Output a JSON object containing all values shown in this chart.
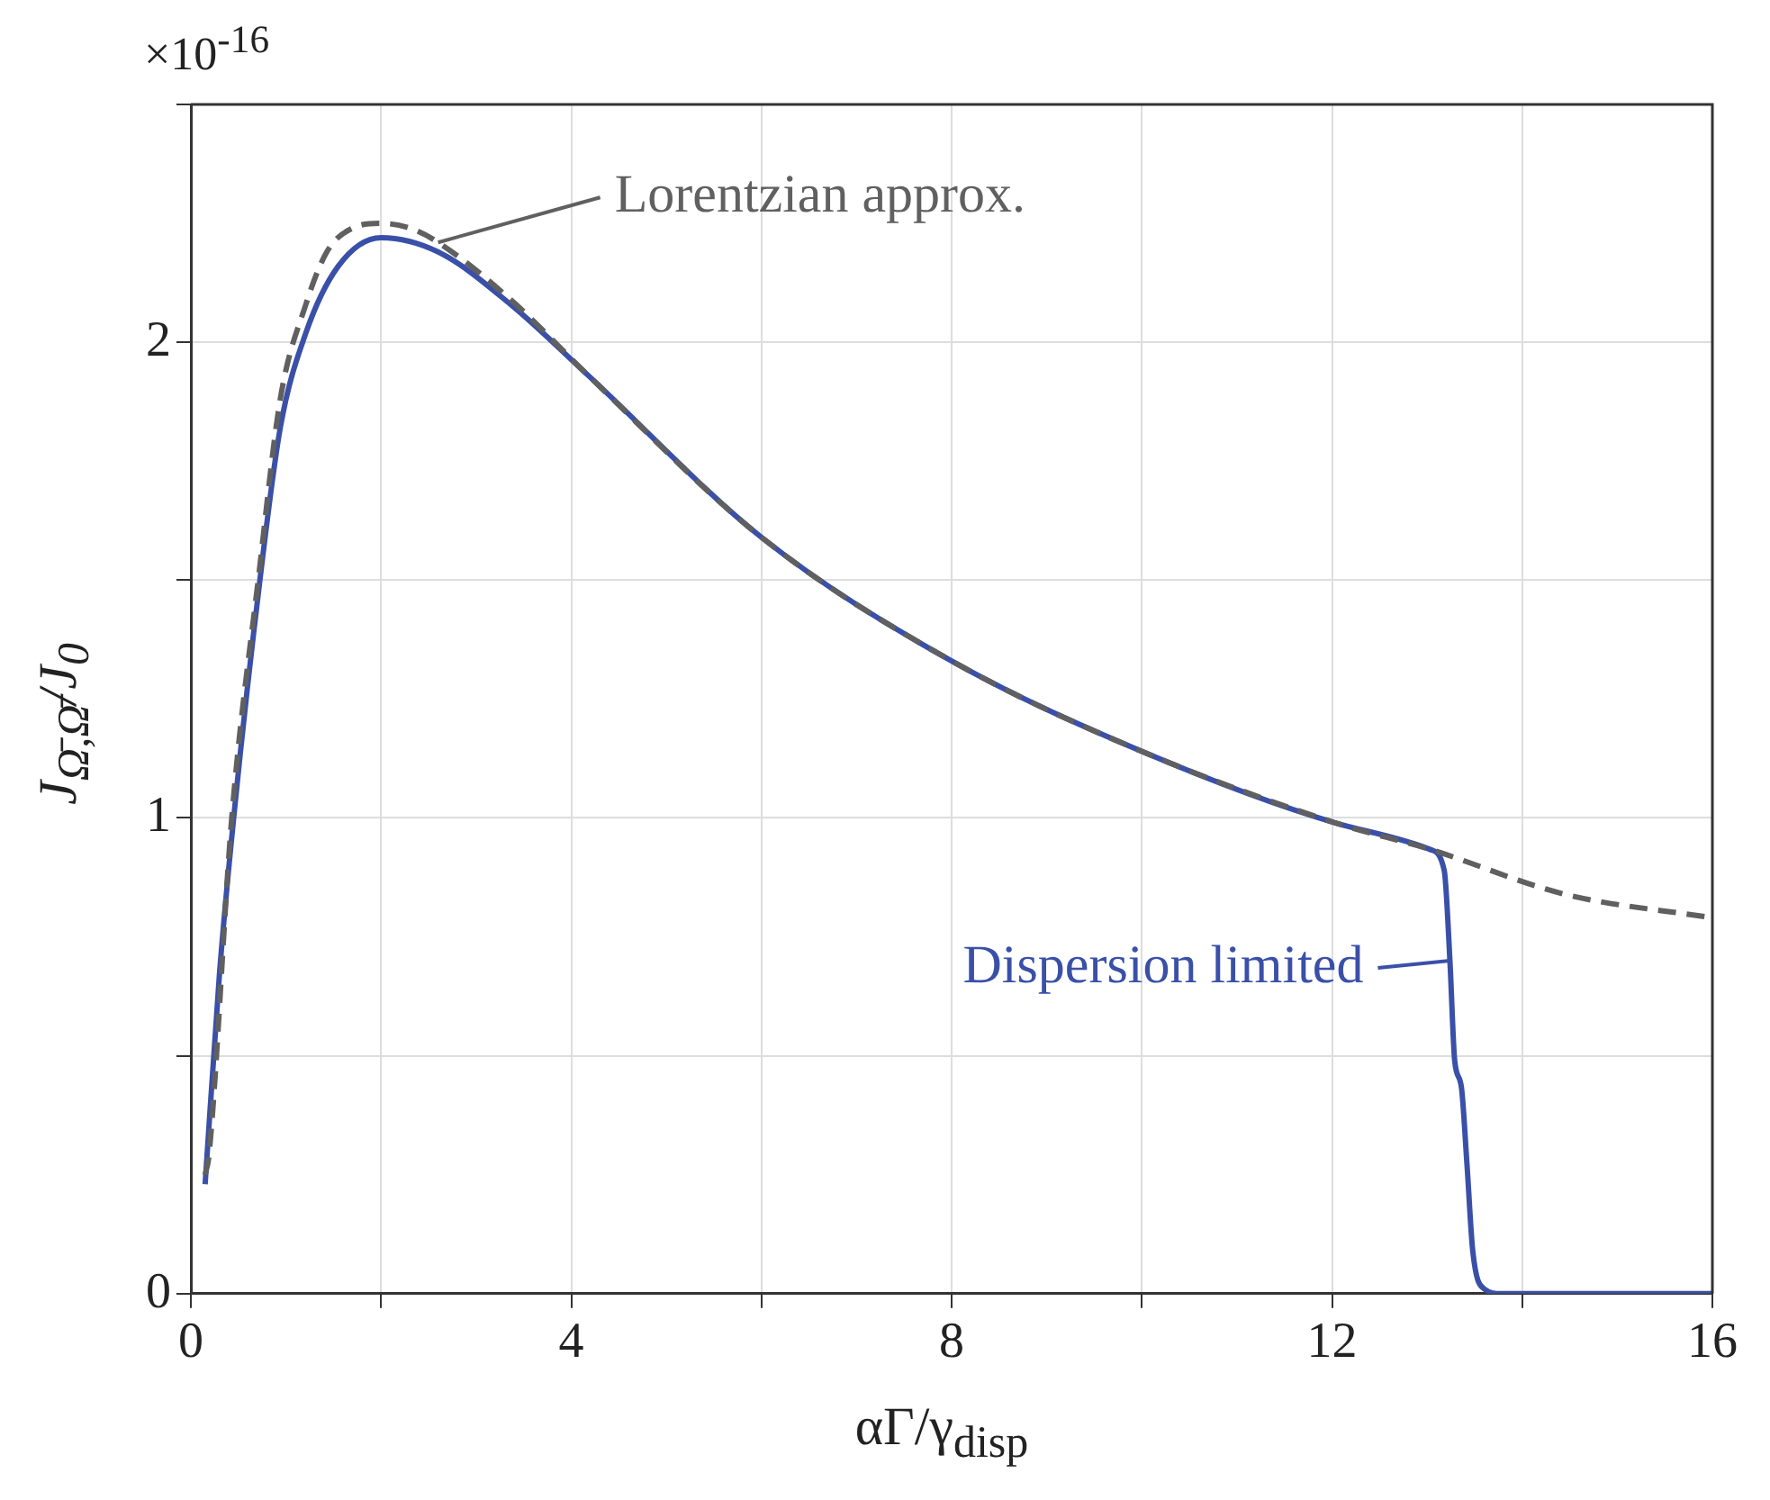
{
  "chart_data": {
    "type": "line",
    "xlabel": "αΓ/γ$_{disp}$",
    "ylabel": "J$_{Ω̄,Ω̄}$/J$_{0}$",
    "xlim": [
      0,
      16
    ],
    "ylim": [
      0,
      2.5
    ],
    "xticks": [
      0,
      {
        "value": 2,
        "label": null
      },
      4,
      {
        "value": 6,
        "label": null
      },
      8,
      {
        "value": 10,
        "label": null
      },
      12,
      {
        "value": 14,
        "label": null
      },
      16
    ],
    "yticks": [
      0,
      {
        "value": 0.5,
        "label": null
      },
      1,
      {
        "value": 1.5,
        "label": null
      },
      2,
      {
        "value": 2.5,
        "label": null
      }
    ],
    "grid": true,
    "legend": false,
    "marker": "none",
    "series": [
      {
        "color": "#606060",
        "line_style": "dashed",
        "x": [
          0.15,
          0.19,
          0.43,
          0.72,
          0.94,
          1.21,
          1.43,
          1.7,
          2.0,
          2.3,
          2.6,
          3.36,
          4.18,
          6.0,
          8.0,
          10.0,
          12.03,
          13.03,
          14.44,
          16
        ],
        "values": [
          0.25,
          0.29,
          1.0,
          1.52,
          1.88,
          2.08,
          2.19,
          2.24,
          2.25,
          2.24,
          2.21,
          2.09,
          1.93,
          1.59,
          1.33,
          1.14,
          0.99,
          0.934,
          0.84,
          0.79
        ]
      },
      {
        "color": "#3a50a8",
        "line_style": "solid",
        "x": [
          0.15,
          0.3,
          0.45,
          0.72,
          0.94,
          1.21,
          1.55,
          2.0,
          2.6,
          3.36,
          4.18,
          6.0,
          8.0,
          10.0,
          12.03,
          13.03,
          13.18,
          13.24,
          13.29,
          13.36,
          13.42,
          13.48,
          13.6,
          13.78,
          16
        ],
        "values": [
          0.23,
          0.67,
          1.0,
          1.49,
          1.82,
          2.02,
          2.16,
          2.22,
          2.19,
          2.08,
          1.93,
          1.59,
          1.33,
          1.14,
          0.99,
          0.934,
          0.89,
          0.7,
          0.49,
          0.435,
          0.27,
          0.09,
          0.01,
          0,
          0
        ]
      }
    ],
    "annotations": [
      {
        "text": "Lorentzian approx.",
        "x": 2.6,
        "y": 2.21
      },
      {
        "text": "Dispersion limited",
        "x": 13.24,
        "y": 0.7
      },
      "×10$^{-16}$"
    ]
  }
}
